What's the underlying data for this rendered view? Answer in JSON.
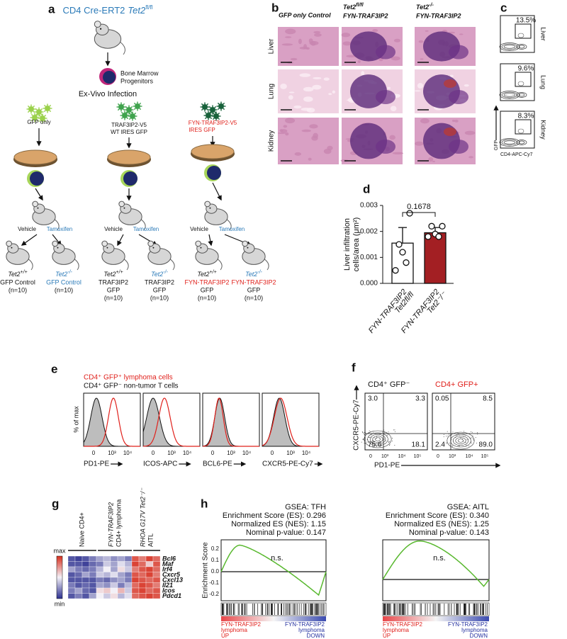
{
  "panel_a": {
    "label": "a",
    "title": "CD4 Cre-ERT2",
    "title_gene": "Tet2",
    "title_sup": "fl/fl",
    "progenitors": [
      "Bone Marrow",
      "Progenitors"
    ],
    "infection": "Ex-Vivo Infection",
    "vectors": [
      [
        "GFP only"
      ],
      [
        "TRAF3IP2-V5",
        "WT IRES GFP"
      ],
      [
        "FYN-TRAF3IP2-V5",
        "IRES GFP"
      ]
    ],
    "treatments": [
      "Vehicle",
      "Tamoxifen"
    ],
    "groups": [
      {
        "gene": "Tet2",
        "genotype": "+/+",
        "lines": [
          "GFP Control"
        ],
        "n": "(n=10)"
      },
      {
        "gene": "Tet2",
        "genotype": "-/-",
        "lines": [
          "GFP Control"
        ],
        "n": "(n=10)"
      },
      {
        "gene": "Tet2",
        "genotype": "+/+",
        "lines": [
          "TRAF3IP2",
          "GFP"
        ],
        "n": "(n=10)"
      },
      {
        "gene": "Tet2",
        "genotype": "-/-",
        "lines": [
          "TRAF3IP2",
          "GFP"
        ],
        "n": "(n=10)"
      },
      {
        "gene": "Tet2",
        "genotype": "+/+",
        "lines": [
          "FYN-TRAF3IP2",
          "GFP"
        ],
        "n": "(n=10)"
      },
      {
        "gene": "Tet2",
        "genotype": "-/-",
        "lines": [
          "FYN-TRAF3IP2",
          "GFP"
        ],
        "n": "(n=10)"
      }
    ]
  },
  "panel_b": {
    "label": "b",
    "columns": [
      {
        "text": "GFP only Control"
      },
      {
        "gene": "Tet2",
        "genotype": "fl/fl",
        "text": "FYN-TRAF3IP2"
      },
      {
        "gene": "Tet2",
        "genotype": "-/-",
        "text": "FYN-TRAF3IP2"
      }
    ],
    "rows": [
      "Liver",
      "Lung",
      "Kidney"
    ]
  },
  "panel_c": {
    "label": "c",
    "percentages": [
      "13.5%",
      "9.6%",
      "8.3%"
    ],
    "rows": [
      "Liver",
      "Lung",
      "Kidney"
    ],
    "y_label": "GFP",
    "x_label": "CD4-APC-Cy7"
  },
  "chart_data": {
    "type": "bar",
    "label": "d",
    "y_label": [
      "Liver infiltration",
      "cells/area (μm²)"
    ],
    "categories": [
      [
        "FYN-TRAF3IP2",
        "Tet2fl/fl"
      ],
      [
        "FYN-TRAF3IP2",
        "Tet2⁻/⁻"
      ]
    ],
    "values": [
      0.00155,
      0.00195
    ],
    "errors": [
      0.0006,
      0.0002
    ],
    "points": [
      [
        0.0027,
        0.0015,
        0.0012,
        0.0008,
        0.0005
      ],
      [
        0.0022,
        0.0022,
        0.0019,
        0.0018,
        0.0018
      ]
    ],
    "colors": [
      "#ffffff",
      "#a31f23"
    ],
    "ylim": [
      0,
      0.003
    ],
    "yticks": [
      {
        "value": 0,
        "label": "0.000"
      },
      {
        "value": 0.001,
        "label": "0.001"
      },
      {
        "value": 0.002,
        "label": "0.002"
      },
      {
        "value": 0.003,
        "label": "0.003"
      }
    ],
    "annotation": "0.1678"
  },
  "panel_e": {
    "label": "e",
    "legend": [
      "CD4⁺ GFP⁺ lymphoma cells",
      "CD4⁺ GFP⁻ non-tumor T cells"
    ],
    "y_label": "% of max",
    "markers": [
      "PD1-PE",
      "ICOS-APC",
      "BCL6-PE",
      "CXCR5-PE-Cy7"
    ],
    "x_ticks": [
      "0",
      "10³",
      "10⁴"
    ]
  },
  "panel_f": {
    "label": "f",
    "populations": [
      "CD4⁺ GFP⁻",
      "CD4+ GFP+"
    ],
    "quadrants": [
      [
        "3.0",
        "3.3",
        "75.6",
        "18.1"
      ],
      [
        "0.05",
        "8.5",
        "2.4",
        "89.0"
      ]
    ],
    "y_label": "CXCR5-PE-Cy7",
    "x_label": "PD1-PE",
    "x_ticks": [
      "0",
      "10³",
      "10⁴",
      "10⁵"
    ]
  },
  "panel_g": {
    "label": "g",
    "groups": [
      [
        "Naive CD4+"
      ],
      [
        "FYN-TRAF3IP2",
        "CD4+ lymphoma"
      ],
      [
        "RHOA G17V Tet2⁻/⁻",
        "AITL"
      ]
    ],
    "genes": [
      "Bcl6",
      "Maf",
      "Irf4",
      "Cxcr5",
      "Cxcl13",
      "Il21",
      "Icos",
      "Pdcd1"
    ],
    "scale": [
      "max",
      "min"
    ],
    "values": [
      [
        0.1,
        0.05,
        0.1,
        0.2,
        0.3,
        0.35,
        0.25,
        0.3,
        0.2,
        0.9,
        0.8,
        0.95,
        0.85
      ],
      [
        0.1,
        0.1,
        0.05,
        0.15,
        0.2,
        0.4,
        0.3,
        0.45,
        0.35,
        0.95,
        0.85,
        0.6,
        0.9
      ],
      [
        0.3,
        0.2,
        0.15,
        0.2,
        0.35,
        0.5,
        0.3,
        0.55,
        0.4,
        0.8,
        0.9,
        0.95,
        0.85
      ],
      [
        0.1,
        0.15,
        0.3,
        0.2,
        0.4,
        0.35,
        0.45,
        0.3,
        0.2,
        0.9,
        0.85,
        0.95,
        0.8
      ],
      [
        0.1,
        0.1,
        0.1,
        0.1,
        0.2,
        0.15,
        0.25,
        0.3,
        0.2,
        0.95,
        0.9,
        0.85,
        0.9
      ],
      [
        0.2,
        0.1,
        0.15,
        0.1,
        0.3,
        0.25,
        0.4,
        0.2,
        0.35,
        0.85,
        0.95,
        0.9,
        0.8
      ],
      [
        0.2,
        0.3,
        0.15,
        0.1,
        0.55,
        0.6,
        0.5,
        0.65,
        0.4,
        0.9,
        0.95,
        0.85,
        0.9
      ],
      [
        0.1,
        0.2,
        0.1,
        0.3,
        0.5,
        0.4,
        0.55,
        0.35,
        0.45,
        0.85,
        0.9,
        0.95,
        0.9
      ]
    ]
  },
  "panel_h": {
    "label": "h",
    "panels": [
      {
        "title": "GSEA: TFH",
        "stats": [
          "Enrichment Score (ES): 0.296",
          "Normalized ES (NES): 1.15",
          "Nominal p-value: 0.147"
        ],
        "note": "n.s."
      },
      {
        "title": "GSEA: AITL",
        "stats": [
          "Enrichment Score (ES): 0.340",
          "Normalized ES (NES): 1.25",
          "Nominal p-value: 0.143"
        ],
        "note": "n.s."
      }
    ],
    "y_label": "Enrichment Score",
    "y_ticks": [
      "0.2",
      "0.1",
      "0.0",
      "-0.1",
      "-0.2"
    ],
    "up": [
      "FYN-TRAF3IP2",
      "lymphoma",
      "UP"
    ],
    "down": [
      "FYN-TRAF3IP2",
      "lymphoma",
      "DOWN"
    ]
  }
}
